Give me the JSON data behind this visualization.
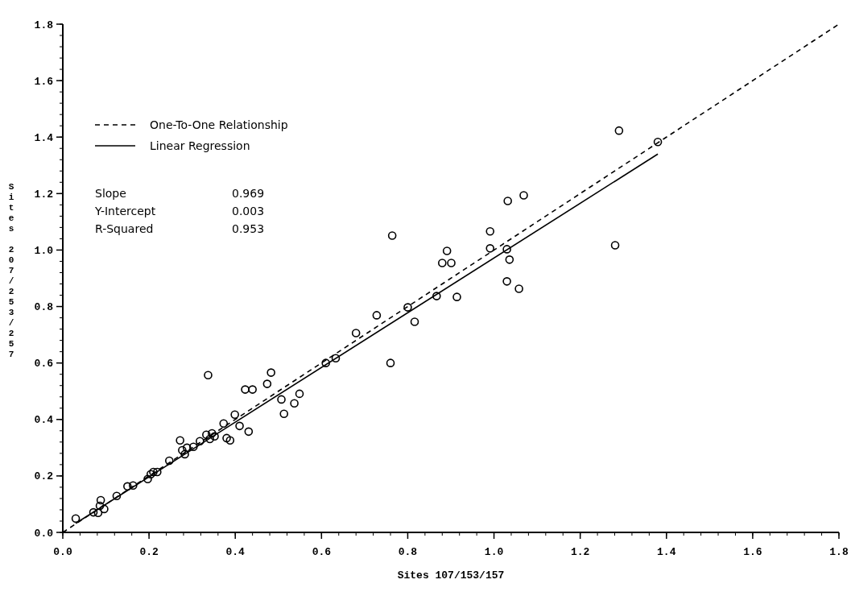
{
  "chart_data": {
    "type": "scatter",
    "xlabel": "Sites 107/153/157",
    "ylabel": "Sites 207/253/257",
    "xlim": [
      0,
      1.8
    ],
    "ylim": [
      0,
      1.8
    ],
    "xticks": [
      {
        "value": 0,
        "label": "0.0"
      },
      0.2,
      0.4,
      0.6,
      0.8,
      {
        "value": 1,
        "label": "1.0"
      },
      1.2,
      1.4,
      1.6,
      1.8
    ],
    "yticks": [
      {
        "value": 0,
        "label": "0.0"
      },
      0.2,
      0.4,
      0.6,
      0.8,
      {
        "value": 1,
        "label": "1.0"
      },
      1.2,
      1.4,
      1.6,
      1.8
    ],
    "grid": false,
    "legend": "top left",
    "annotations": [
      "Slope",
      "0.969",
      "Y-Intercept",
      "0.003",
      "R-Squared",
      "0.953"
    ],
    "series": [
      {
        "type": "line",
        "name": "One-To-One Relationship",
        "color": "#000000",
        "line_style": "dashed",
        "x": [
          0,
          1.8
        ],
        "values": [
          0,
          1.8
        ]
      },
      {
        "type": "line",
        "name": "Linear Regression",
        "color": "#000000",
        "line_style": "solid",
        "x": [
          0.03,
          1.38
        ],
        "values": [
          0.032,
          1.34
        ]
      },
      {
        "color": "#000000",
        "marker": "circle",
        "x": [
          0.03,
          0.071,
          0.082,
          0.086,
          0.088,
          0.096,
          0.125,
          0.15,
          0.163,
          0.197,
          0.204,
          0.21,
          0.219,
          0.247,
          0.272,
          0.277,
          0.283,
          0.288,
          0.303,
          0.318,
          0.333,
          0.337,
          0.341,
          0.346,
          0.352,
          0.373,
          0.38,
          0.388,
          0.399,
          0.41,
          0.423,
          0.431,
          0.44,
          0.474,
          0.483,
          0.507,
          0.513,
          0.537,
          0.549,
          0.61,
          0.633,
          0.68,
          0.728,
          0.76,
          0.764,
          0.8,
          0.816,
          0.867,
          0.88,
          0.891,
          0.901,
          0.914,
          0.991,
          0.991,
          1.03,
          1.03,
          1.032,
          1.036,
          1.058,
          1.069,
          1.281,
          1.29,
          1.38
        ],
        "values": [
          0.049,
          0.071,
          0.069,
          0.094,
          0.114,
          0.083,
          0.129,
          0.163,
          0.166,
          0.189,
          0.206,
          0.214,
          0.214,
          0.254,
          0.326,
          0.291,
          0.277,
          0.3,
          0.303,
          0.323,
          0.346,
          0.557,
          0.331,
          0.351,
          0.34,
          0.386,
          0.334,
          0.326,
          0.417,
          0.377,
          0.506,
          0.357,
          0.506,
          0.526,
          0.566,
          0.471,
          0.42,
          0.457,
          0.491,
          0.6,
          0.617,
          0.706,
          0.769,
          0.6,
          1.051,
          0.797,
          0.746,
          0.837,
          0.954,
          0.997,
          0.954,
          0.834,
          1.066,
          1.006,
          0.889,
          1.003,
          1.174,
          0.966,
          0.863,
          1.194,
          1.017,
          1.423,
          1.383
        ]
      }
    ]
  }
}
